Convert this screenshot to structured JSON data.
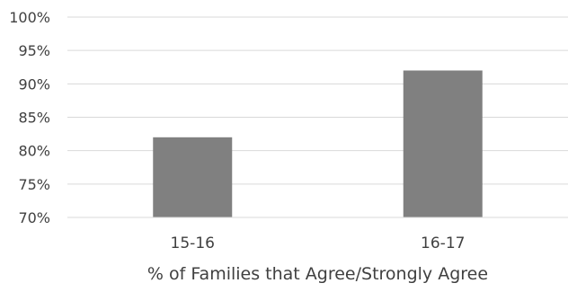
{
  "chart_data": {
    "type": "bar",
    "categories": [
      "15-16",
      "16-17"
    ],
    "values": [
      82,
      92
    ],
    "xlabel": "% of Families that Agree/Strongly Agree",
    "ylabel": "",
    "ylim": [
      70,
      100
    ],
    "yticks": [
      70,
      75,
      80,
      85,
      90,
      95,
      100
    ],
    "ytick_labels": [
      "70%",
      "75%",
      "80%",
      "85%",
      "90%",
      "95%",
      "100%"
    ],
    "grid": true,
    "legend": "none",
    "bar_color": "#808080",
    "grid_color": "#d9d9d9"
  }
}
